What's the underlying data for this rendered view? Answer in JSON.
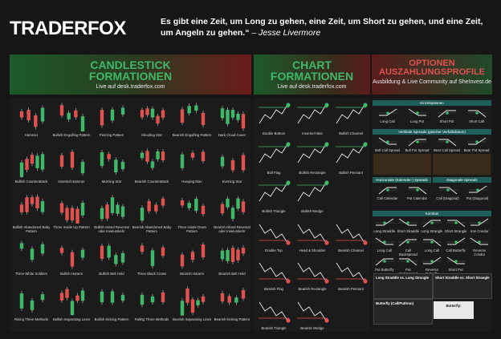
{
  "header": {
    "logo": "TRADERFOX",
    "quote": "Es gibt eine Zeit, um Long zu gehen, eine Zeit, um Short zu gehen, und eine Zeit, um Angeln zu gehen.“",
    "author": "– Jesse Livermore"
  },
  "sections": [
    {
      "lines": [
        "CANDLESTICK",
        "FORMATIONEN"
      ],
      "subtitle": "Live auf desk.traderfox.com"
    },
    {
      "lines": [
        "CHART",
        "FORMATIONEN"
      ],
      "subtitle": "Live auf desk.traderfox.com"
    },
    {
      "lines": [
        "OPTIONEN",
        "AUSZAHLUNGSPROFILE"
      ],
      "subtitle": "Ausbildung & Live Community auf SheInvest.de"
    }
  ],
  "candlesticks": [
    "Hammer",
    "Bullish Engulfing Pattern",
    "Piercing Pattern",
    "Shooting Star",
    "Bearish Engulfing Pattern",
    "Dark Cloud Cover",
    "Bullish Counterattack",
    "Inverted Hammer",
    "Morning Star",
    "Bearish Counterattack",
    "Hanging Man",
    "Evening Star",
    "Bullish Abandoned Baby Pattern",
    "Three Inside Up Pattern",
    "Bullish Island Reversal oder Inselumkehr",
    "Bearish Abandoned Baby Pattern",
    "Three Inside Down Pattern",
    "Bearish Island Reversal oder Inselumkehr",
    "Three White Soldiers",
    "Bullish Harami",
    "Bullish Belt Hold",
    "Three Black Crows",
    "Bearish Harami",
    "Bearish Belt Hold",
    "Rising Three Methods",
    "Bullish Separating Lines",
    "Bullish Kicking Pattern",
    "Falling Three Methods",
    "Bearish Separating Lines",
    "Bearish Kicking Pattern"
  ],
  "chart_patterns": [
    [
      "Double Bottom",
      "Inverted H&S",
      "Bullish Channel"
    ],
    [
      "Bull Flag",
      "Bullish Rectangle",
      "Bullish Pennant"
    ],
    [
      "Bullish Triangle",
      "Bullish Wedge"
    ],
    [
      "Double Top",
      "Head & Shoulder",
      "Bearish Channel"
    ],
    [
      "Bearish Flag",
      "Bearish Rectangle",
      "Bearish Pennant"
    ],
    [
      "Bearish Triangle",
      "Bearish Wedge"
    ]
  ],
  "options": [
    {
      "title": "Einzeloptionen",
      "items": [
        "Long Call",
        "Long Put",
        "Short Put",
        "Short Call"
      ]
    },
    {
      "title": "Vertikale Spreads (gleicher Verfallsdatum)",
      "items": [
        "Bull Call Spread",
        "Bull Put Spread",
        "Bear Call Spread",
        "Bear Put Spread"
      ]
    },
    {
      "title": "Horizontale (Kalender-) Spreads",
      "items": [
        "Call Calendar",
        "Put Calendar"
      ]
    },
    {
      "title": "Diagonale Spreads",
      "items": [
        "Call (Diagonal)",
        "Put (Diagonal)"
      ]
    },
    {
      "title": "Kombos",
      "items": [
        "Long Straddle",
        "Short Straddle",
        "Long Strangle",
        "Short Strangle",
        "Iron Condor",
        "Long Call",
        "Call Backspread",
        "Long Call",
        "Call Butterfly",
        "Reverse Condor",
        "Put Butterfly",
        "Put Backspread",
        "Reverse Butterfly",
        "Short Put"
      ]
    },
    {
      "title": "Long Straddle vs. Long Strangle",
      "items": []
    },
    {
      "title": "Short Straddle vs. Short Strangle",
      "items": []
    },
    {
      "title": "Butterfly (Call/Put/Iron)",
      "items": []
    },
    {
      "title": "Butterfly:",
      "items": []
    }
  ]
}
